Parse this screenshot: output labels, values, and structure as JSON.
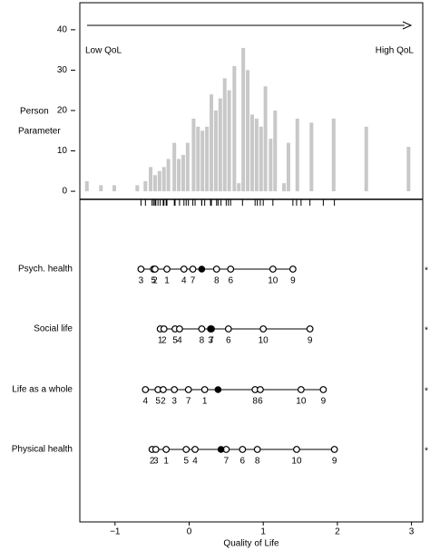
{
  "chart_data": {
    "type": "person_item_map",
    "arrow_left_label": "Low QoL",
    "arrow_right_label": "High QoL",
    "ylabel": [
      "Person",
      "Parameter"
    ],
    "xlabel": "Quality of Life",
    "xlim": [
      -1.475,
      3.152
    ],
    "xticks": [
      {
        "value": -1,
        "label": "−1"
      },
      0,
      1,
      2,
      3
    ],
    "ylim": [
      -2,
      46.7
    ],
    "yticks": [
      0,
      10,
      20,
      30,
      40
    ],
    "person_parameter": {
      "color": "#c8c8c8",
      "x": [
        -1.38,
        -1.19,
        -1.01,
        -0.7,
        -0.59,
        -0.52,
        -0.46,
        -0.4,
        -0.34,
        -0.28,
        -0.2,
        -0.14,
        -0.08,
        -0.02,
        0.06,
        0.12,
        0.18,
        0.24,
        0.3,
        0.36,
        0.42,
        0.48,
        0.54,
        0.61,
        0.67,
        0.73,
        0.79,
        0.85,
        0.91,
        0.97,
        1.03,
        1.1,
        1.16,
        1.28,
        1.34,
        1.46,
        1.65,
        1.95,
        2.39,
        2.96
      ],
      "values": [
        2.5,
        1.5,
        1.5,
        1.5,
        2.5,
        6,
        4,
        5,
        6,
        8,
        12,
        8,
        9,
        12,
        18,
        16,
        15,
        16,
        24,
        20,
        23,
        28,
        25,
        31,
        2,
        35.5,
        30,
        19,
        18,
        16,
        26,
        13,
        20,
        2,
        12,
        18,
        17,
        18,
        16,
        11
      ]
    },
    "items": [
      {
        "name": "Psych. health",
        "location": 0.17,
        "flag": "*",
        "thresholds": [
          -0.65,
          -0.48,
          -0.46,
          -0.3,
          -0.07,
          0.05,
          0.37,
          0.56,
          1.13,
          1.4
        ],
        "threshold_labels": [
          "3",
          "5",
          "2",
          "1",
          "4",
          "7",
          "8",
          "6",
          "10",
          "9"
        ]
      },
      {
        "name": "Social life",
        "location": 0.29,
        "flag": "*",
        "thresholds": [
          -0.39,
          -0.34,
          -0.19,
          -0.13,
          0.17,
          0.29,
          0.3,
          0.53,
          1.0,
          1.63
        ],
        "threshold_labels": [
          "1",
          "2",
          "5",
          "4",
          "8",
          "3",
          "7",
          "6",
          "10",
          "9"
        ]
      },
      {
        "name": "Life as a whole",
        "location": 0.39,
        "flag": "*",
        "thresholds": [
          -0.59,
          -0.42,
          -0.35,
          -0.2,
          -0.01,
          0.21,
          0.89,
          0.96,
          1.51,
          1.81
        ],
        "threshold_labels": [
          "4",
          "5",
          "2",
          "3",
          "7",
          "1",
          "8",
          "6",
          "10",
          "9"
        ]
      },
      {
        "name": "Physical health",
        "location": 0.43,
        "flag": "*",
        "thresholds": [
          -0.5,
          -0.45,
          -0.31,
          -0.04,
          0.08,
          0.5,
          0.72,
          0.92,
          1.45,
          1.96
        ],
        "threshold_labels": [
          "2",
          "3",
          "1",
          "5",
          "4",
          "7",
          "6",
          "8",
          "10",
          "9"
        ]
      }
    ]
  }
}
